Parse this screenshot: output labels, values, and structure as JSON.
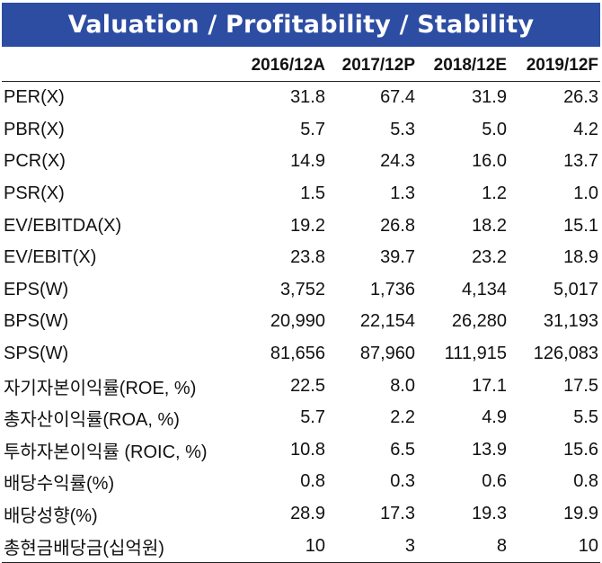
{
  "title": "Valuation / Profitability / Stability",
  "columns": [
    "",
    "2016/12A",
    "2017/12P",
    "2018/12E",
    "2019/12F"
  ],
  "rows": [
    {
      "label": "PER(X)",
      "values": [
        "31.8",
        "67.4",
        "31.9",
        "26.3"
      ]
    },
    {
      "label": "PBR(X)",
      "values": [
        "5.7",
        "5.3",
        "5.0",
        "4.2"
      ]
    },
    {
      "label": "PCR(X)",
      "values": [
        "14.9",
        "24.3",
        "16.0",
        "13.7"
      ]
    },
    {
      "label": "PSR(X)",
      "values": [
        "1.5",
        "1.3",
        "1.2",
        "1.0"
      ]
    },
    {
      "label": "EV/EBITDA(X)",
      "values": [
        "19.2",
        "26.8",
        "18.2",
        "15.1"
      ]
    },
    {
      "label": "EV/EBIT(X)",
      "values": [
        "23.8",
        "39.7",
        "23.2",
        "18.9"
      ]
    },
    {
      "label": "EPS(W)",
      "values": [
        "3,752",
        "1,736",
        "4,134",
        "5,017"
      ]
    },
    {
      "label": "BPS(W)",
      "values": [
        "20,990",
        "22,154",
        "26,280",
        "31,193"
      ]
    },
    {
      "label": "SPS(W)",
      "values": [
        "81,656",
        "87,960",
        "111,915",
        "126,083"
      ]
    },
    {
      "label": "자기자본이익률(ROE, %)",
      "values": [
        "22.5",
        "8.0",
        "17.1",
        "17.5"
      ]
    },
    {
      "label": "총자산이익률(ROA, %)",
      "values": [
        "5.7",
        "2.2",
        "4.9",
        "5.5"
      ]
    },
    {
      "label": "투하자본이익률 (ROIC, %)",
      "values": [
        "10.8",
        "6.5",
        "13.9",
        "15.6"
      ]
    },
    {
      "label": "배당수익률(%)",
      "values": [
        "0.8",
        "0.3",
        "0.6",
        "0.8"
      ]
    },
    {
      "label": "배당성향(%)",
      "values": [
        "28.9",
        "17.3",
        "19.3",
        "19.9"
      ]
    },
    {
      "label": "총현금배당금(십억원)",
      "values": [
        "10",
        "3",
        "8",
        "10"
      ]
    }
  ]
}
